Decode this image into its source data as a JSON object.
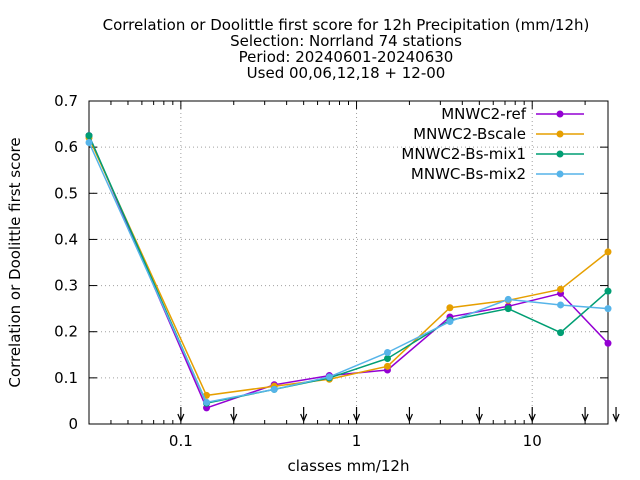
{
  "chart_data": {
    "type": "line",
    "title_lines": [
      "Correlation or Doolittle first score  for 12h Precipitation (mm/12h)",
      "Selection: Norrland     74 stations",
      "Period: 20240601-20240630",
      "Used 00,06,12,18 + 12-00"
    ],
    "xlabel": "classes mm/12h",
    "ylabel": "Correlation or Doolittle first score",
    "x_scale": "log",
    "xlim": [
      0.03,
      27
    ],
    "ylim": [
      0,
      0.7
    ],
    "x_ticks": [
      0.1,
      1,
      10
    ],
    "x_tick_labels": [
      "0.1",
      "1",
      "10"
    ],
    "y_ticks": [
      0,
      0.1,
      0.2,
      0.3,
      0.4,
      0.5,
      0.6,
      0.7
    ],
    "y_tick_labels": [
      "0",
      "0.1",
      "0.2",
      "0.3",
      "0.4",
      "0.5",
      "0.6",
      "0.7"
    ],
    "grid": true,
    "legend_position": "top-right",
    "threshold_arrows": [
      0.1,
      0.2,
      0.5,
      1,
      2,
      5,
      10,
      20,
      30
    ],
    "x": [
      0.03,
      0.14,
      0.34,
      0.7,
      1.5,
      3.4,
      7.3,
      14.5,
      27
    ],
    "series": [
      {
        "name": "MNWC2-ref",
        "color": "#9400d3",
        "marker": "circle",
        "values": [
          0.625,
          0.035,
          0.085,
          0.105,
          0.117,
          0.232,
          0.255,
          0.283,
          0.175
        ]
      },
      {
        "name": "MNWC2-Bscale",
        "color": "#e69f00",
        "marker": "circle",
        "values": [
          0.62,
          0.062,
          0.082,
          0.097,
          0.125,
          0.252,
          0.268,
          0.292,
          0.373
        ]
      },
      {
        "name": "MNWC2-Bs-mix1",
        "color": "#009e73",
        "marker": "circle",
        "values": [
          0.625,
          0.045,
          0.075,
          0.1,
          0.142,
          0.225,
          0.25,
          0.198,
          0.288
        ]
      },
      {
        "name": "MNWC-Bs-mix2",
        "color": "#56b4e9",
        "marker": "circle",
        "values": [
          0.61,
          0.047,
          0.075,
          0.102,
          0.155,
          0.222,
          0.27,
          0.258,
          0.25
        ]
      }
    ]
  }
}
